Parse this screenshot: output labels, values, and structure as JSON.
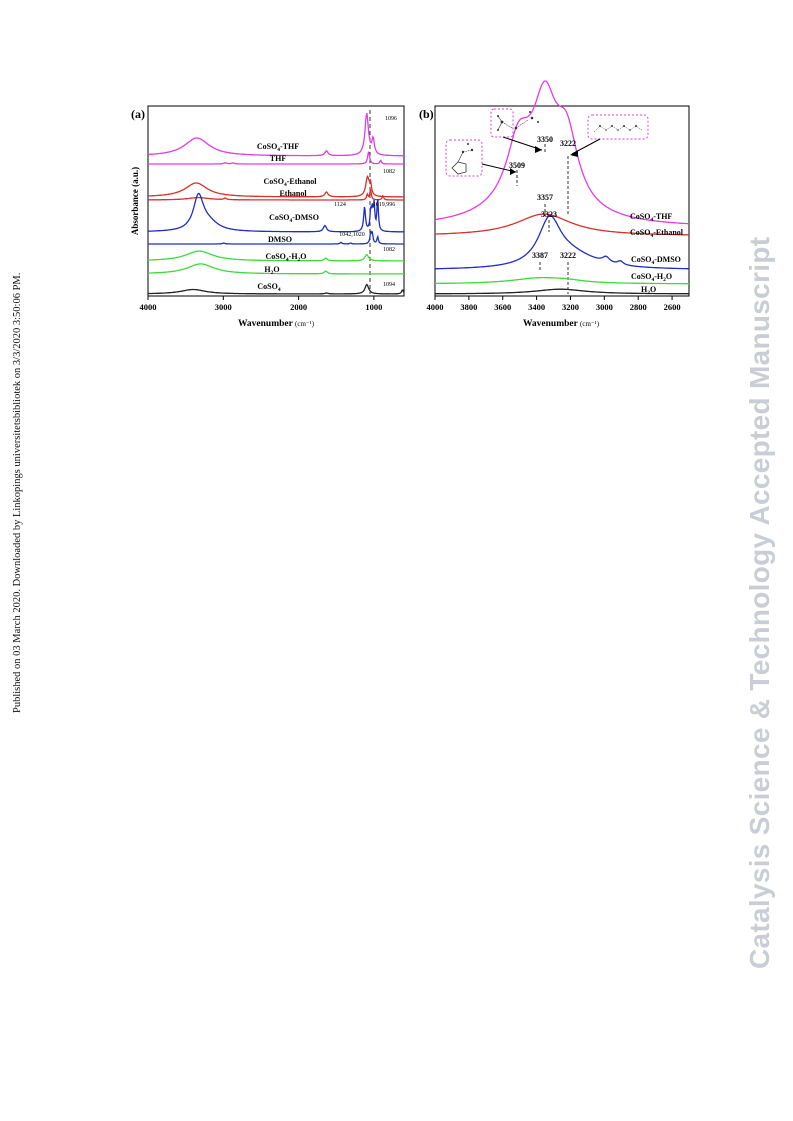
{
  "side_note": "Published on 03 March 2020. Downloaded by Linkopings universitetsbibliotek on 3/3/2020 3:50:06 PM.",
  "watermark": "Catalysis Science & Technology Accepted Manuscript",
  "colors": {
    "magenta": "#e23be8",
    "red": "#d9302a",
    "blue": "#1f2ec4",
    "green": "#3fd93f",
    "black": "#222222"
  },
  "chart_data": [
    {
      "panel_label": "(a)",
      "type": "line",
      "xlabel": "Wavenumber",
      "xlabel_unit": "(cm⁻¹)",
      "ylabel": "Absorbance (a.u.)",
      "xlim": [
        4000,
        600
      ],
      "x_reversed": true,
      "xticks": [
        4000,
        3000,
        2000,
        1000
      ],
      "yticks": "none",
      "series": [
        {
          "name": "CoSO4-THF",
          "label_main": "CoSO",
          "label_sub": "4",
          "label_rest": "-THF",
          "color": "magenta",
          "baseline": 0.9,
          "peaks": [
            [
              3350,
              200,
              0.36
            ],
            [
              1630,
              25,
              0.1
            ],
            [
              1095,
              28,
              0.84
            ],
            [
              1010,
              20,
              0.3
            ]
          ]
        },
        {
          "name": "THF",
          "label_main": "THF",
          "label_sub": "",
          "label_rest": "",
          "color": "magenta",
          "baseline": 0.08,
          "peaks": [
            [
              2975,
              25,
              0.06
            ],
            [
              2870,
              25,
              0.05
            ],
            [
              1070,
              15,
              0.62
            ],
            [
              910,
              12,
              0.18
            ]
          ]
        },
        {
          "name": "CoSO4-Ethanol",
          "label_main": "CoSO",
          "label_sub": "4",
          "label_rest": "-Ethanol",
          "color": "red",
          "baseline": 0.55,
          "peaks": [
            [
              3360,
              180,
              0.4
            ],
            [
              1630,
              25,
              0.14
            ],
            [
              1085,
              28,
              0.55
            ],
            [
              1045,
              15,
              0.3
            ]
          ]
        },
        {
          "name": "Ethanol",
          "label_main": "Ethanol",
          "label_sub": "",
          "label_rest": "",
          "color": "red",
          "baseline": 0.08,
          "peaks": [
            [
              3330,
              170,
              0.12
            ],
            [
              2975,
              20,
              0.08
            ],
            [
              1087,
              12,
              0.26
            ],
            [
              1045,
              12,
              0.52
            ],
            [
              880,
              12,
              0.22
            ]
          ]
        },
        {
          "name": "CoSO4-DMSO",
          "label_main": "CoSO",
          "label_sub": "4",
          "label_rest": "-DMSO",
          "color": "blue",
          "baseline": 0.22,
          "peaks": [
            [
              3330,
              80,
              0.95
            ],
            [
              3200,
              160,
              0.25
            ],
            [
              1650,
              25,
              0.18
            ],
            [
              1124,
              15,
              0.7
            ],
            [
              1042,
              12,
              0.55
            ],
            [
              1020,
              12,
              0.55
            ],
            [
              996,
              10,
              0.7
            ],
            [
              950,
              12,
              0.9
            ]
          ]
        },
        {
          "name": "DMSO",
          "label_main": "DMSO",
          "label_sub": "",
          "label_rest": "",
          "color": "blue",
          "baseline": 0.08,
          "peaks": [
            [
              2995,
              20,
              0.05
            ],
            [
              1437,
              15,
              0.08
            ],
            [
              1310,
              12,
              0.05
            ],
            [
              1042,
              12,
              0.55
            ],
            [
              1020,
              12,
              0.45
            ],
            [
              950,
              12,
              0.35
            ]
          ]
        },
        {
          "name": "CoSO4-H2O",
          "label_main": "CoSO",
          "label_sub": "4",
          "label_rest": "-H",
          "label_sub2": "2",
          "label_rest2": "O",
          "color": "green",
          "baseline": 0.2,
          "peaks": [
            [
              3320,
              220,
              0.55
            ],
            [
              1640,
              25,
              0.15
            ],
            [
              1095,
              30,
              0.35
            ]
          ]
        },
        {
          "name": "H2O",
          "label_main": "H",
          "label_sub": "2",
          "label_rest": "O",
          "color": "green",
          "baseline": 0.15,
          "peaks": [
            [
              3300,
              220,
              0.72
            ],
            [
              1640,
              25,
              0.2
            ]
          ]
        },
        {
          "name": "CoSO4",
          "label_main": "CoSO",
          "label_sub": "4",
          "label_rest": "",
          "color": "black",
          "baseline": 0.15,
          "peaks": [
            [
              3400,
              200,
              0.45
            ],
            [
              1630,
              25,
              0.1
            ],
            [
              1094,
              30,
              0.95
            ],
            [
              620,
              15,
              0.4
            ]
          ]
        }
      ],
      "annotations": [
        {
          "text": "1096",
          "x": 1096
        },
        {
          "text": "1082",
          "x": 1082
        },
        {
          "text": "1124",
          "x": 1124
        },
        {
          "text": "1019,996",
          "x": 1019
        },
        {
          "text": "1042,1020",
          "x": 1042
        },
        {
          "text": "1082",
          "x": 1082
        },
        {
          "text": "1094",
          "x": 1094
        }
      ]
    },
    {
      "panel_label": "(b)",
      "type": "line",
      "xlabel": "Wavenumber",
      "xlabel_unit": "(cm⁻¹)",
      "xlim": [
        4000,
        2500
      ],
      "x_reversed": true,
      "xticks": [
        4000,
        3800,
        3600,
        3400,
        3200,
        3000,
        2800,
        2600
      ],
      "series": [
        {
          "name": "CoSO4-THF",
          "label_main": "CoSO",
          "label_sub": "4",
          "label_rest": "-THF",
          "color": "magenta",
          "baseline": 0.02,
          "peaks": [
            [
              3509,
              80,
              0.55
            ],
            [
              3350,
              80,
              0.85
            ],
            [
              3222,
              80,
              0.7
            ],
            [
              3400,
              220,
              0.5
            ]
          ]
        },
        {
          "name": "CoSO4-Ethanol",
          "label_main": "CoSO",
          "label_sub": "4",
          "label_rest": "-Ethanol",
          "color": "red",
          "baseline": 0.05,
          "peaks": [
            [
              3357,
              200,
              0.55
            ]
          ]
        },
        {
          "name": "CoSO4-DMSO",
          "label_main": "CoSO",
          "label_sub": "4",
          "label_rest": "-DMSO",
          "color": "blue",
          "baseline": 0.05,
          "peaks": [
            [
              3323,
              80,
              1.0
            ],
            [
              3200,
              180,
              0.3
            ],
            [
              2990,
              25,
              0.12
            ],
            [
              2905,
              20,
              0.08
            ]
          ]
        },
        {
          "name": "CoSO4-H2O",
          "label_main": "CoSO",
          "label_sub": "4",
          "label_rest": "-H",
          "label_sub2": "2",
          "label_rest2": "O",
          "color": "green",
          "baseline": 0.03,
          "peaks": [
            [
              3387,
              200,
              0.28
            ],
            [
              3222,
              120,
              0.1
            ]
          ]
        },
        {
          "name": "H2O",
          "label_main": "H",
          "label_sub": "2",
          "label_rest": "O",
          "color": "black",
          "baseline": 0.02,
          "peaks": [
            [
              3260,
              180,
              0.4
            ]
          ]
        }
      ],
      "annotations": [
        {
          "text": "3509",
          "x": 3509
        },
        {
          "text": "3350",
          "x": 3350
        },
        {
          "text": "3222",
          "x": 3222
        },
        {
          "text": "3357",
          "x": 3357
        },
        {
          "text": "3323",
          "x": 3323
        },
        {
          "text": "3387",
          "x": 3387
        },
        {
          "text": "3222",
          "x": 3222
        }
      ]
    }
  ]
}
